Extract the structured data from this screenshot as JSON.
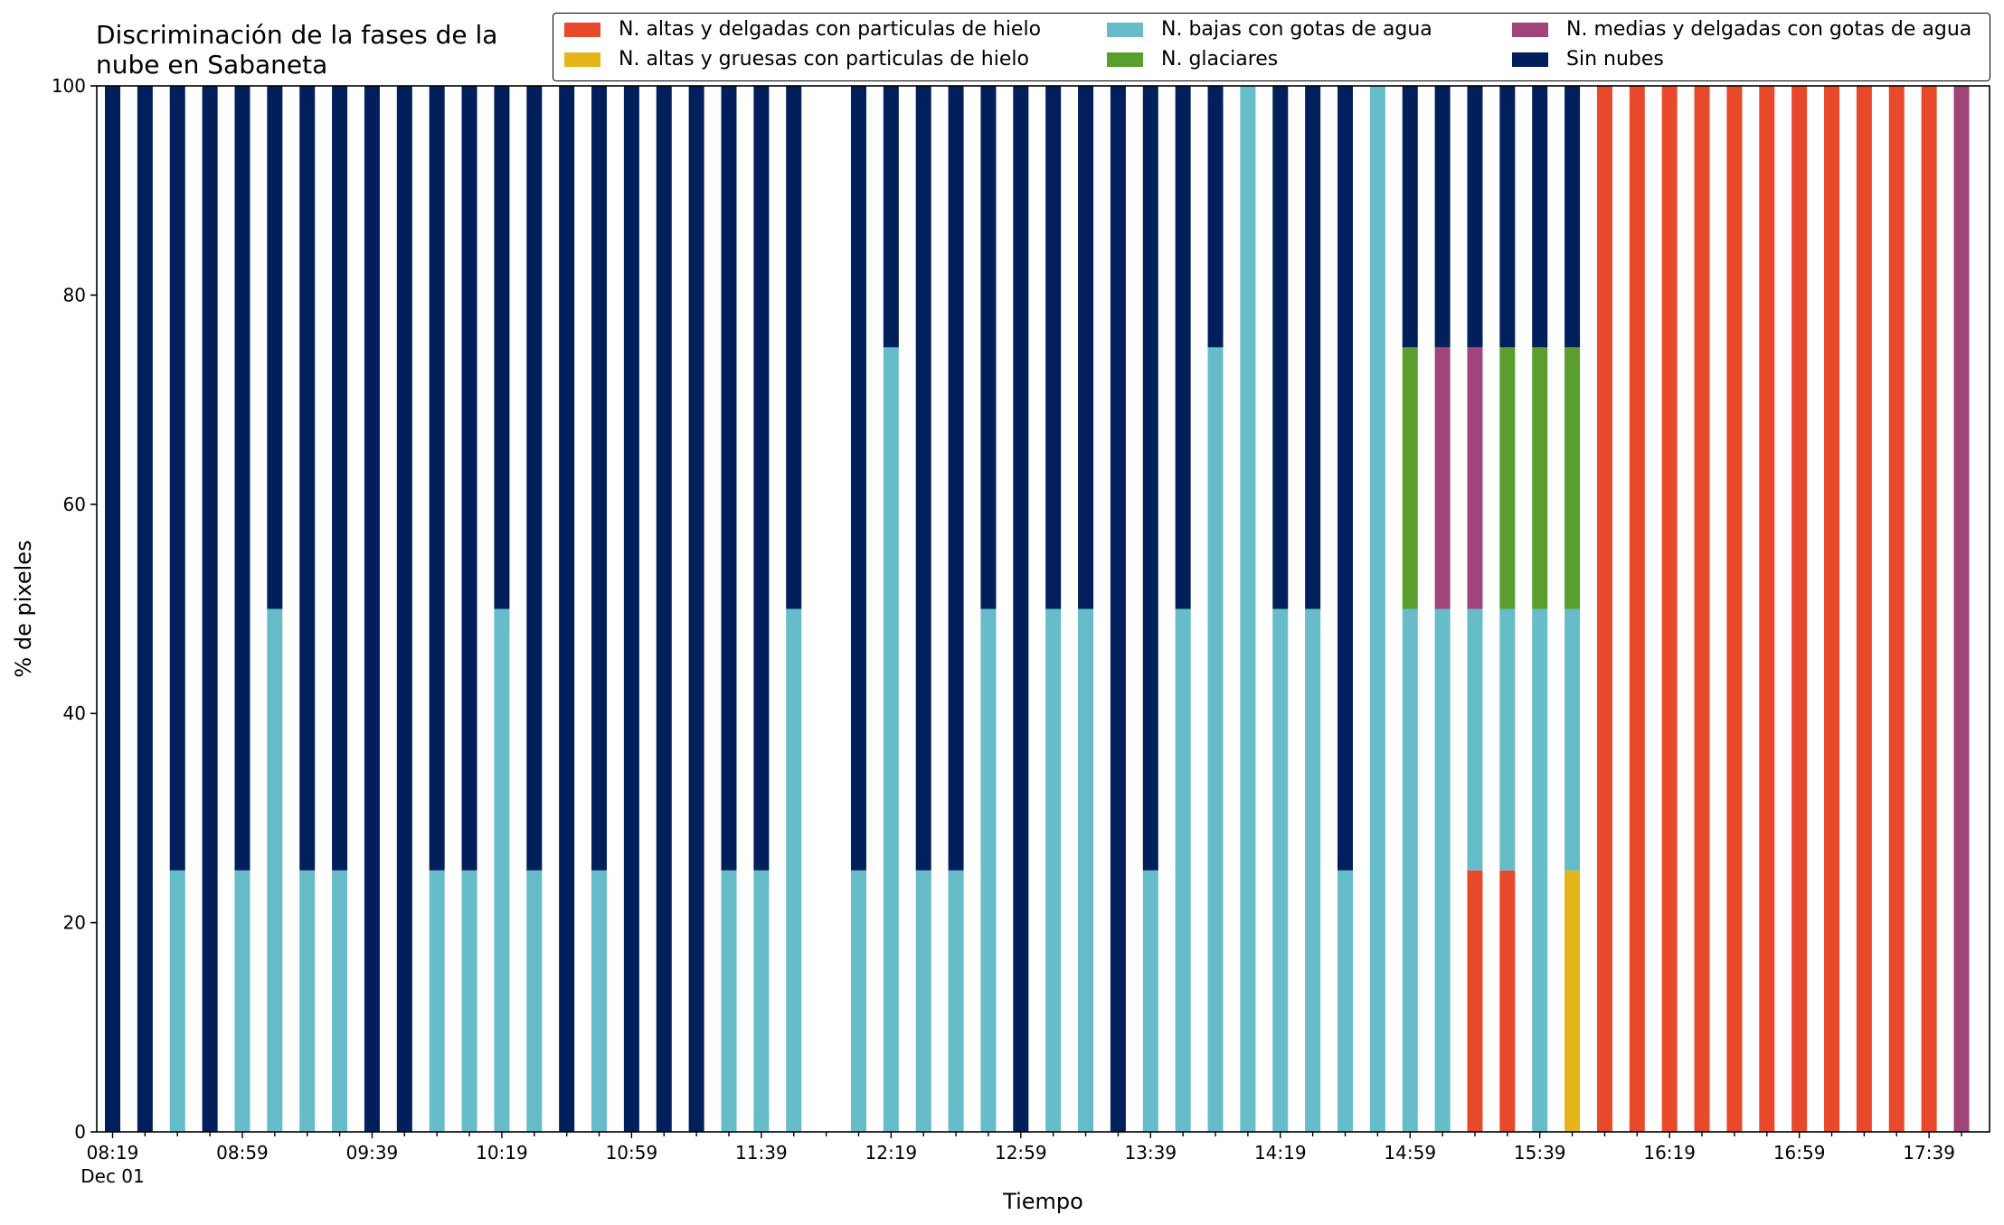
{
  "chart_data": {
    "type": "bar",
    "stacked": true,
    "title_lines": [
      "Discriminación de la fases de la",
      "nube en Sabaneta"
    ],
    "xlabel": "Tiempo",
    "ylabel": "% de pixeles",
    "ylim": [
      0,
      100
    ],
    "yticks": [
      "0",
      "20",
      "40",
      "60",
      "80",
      "100"
    ],
    "xtick_labels": [
      "08:19",
      "08:59",
      "09:39",
      "10:19",
      "10:59",
      "11:39",
      "12:19",
      "12:59",
      "13:39",
      "14:19",
      "14:59",
      "15:39",
      "16:19",
      "16:59",
      "17:39"
    ],
    "xtick_sublabel": "Dec 01",
    "grid": false,
    "legend_placement": "top-right",
    "colors": {
      "altas_delgadas": "#e8492b",
      "altas_gruesas": "#e3b51a",
      "bajas": "#66bcc8",
      "glaciares": "#5a9f2e",
      "medias": "#a0457a",
      "sin_nubes": "#011f5b"
    },
    "series": [
      {
        "key": "altas_delgadas",
        "name": "N. altas y delgadas con particulas de hielo"
      },
      {
        "key": "altas_gruesas",
        "name": "N. altas y gruesas con particulas de hielo"
      },
      {
        "key": "bajas",
        "name": "N. bajas con gotas de agua"
      },
      {
        "key": "glaciares",
        "name": "N. glaciares"
      },
      {
        "key": "medias",
        "name": "N. medias y delgadas con gotas de agua"
      },
      {
        "key": "sin_nubes",
        "name": "Sin nubes"
      }
    ],
    "legend_order": [
      "altas_delgadas",
      "bajas",
      "medias",
      "altas_gruesas",
      "glaciares",
      "sin_nubes"
    ],
    "x": [
      "08:19",
      "08:29",
      "08:39",
      "08:49",
      "08:59",
      "09:09",
      "09:19",
      "09:29",
      "09:39",
      "09:49",
      "09:59",
      "10:09",
      "10:19",
      "10:29",
      "10:39",
      "10:49",
      "10:59",
      "11:09",
      "11:19",
      "11:29",
      "11:39",
      "11:49",
      "11:59",
      "12:09",
      "12:19",
      "12:29",
      "12:39",
      "12:49",
      "12:59",
      "13:09",
      "13:19",
      "13:29",
      "13:39",
      "13:49",
      "13:59",
      "14:09",
      "14:19",
      "14:29",
      "14:39",
      "14:49",
      "14:59",
      "15:09",
      "15:19",
      "15:29",
      "15:39",
      "15:49",
      "15:59",
      "16:09",
      "16:19",
      "16:29",
      "16:39",
      "16:49",
      "16:59",
      "17:09",
      "17:19",
      "17:29",
      "17:39",
      "17:49"
    ],
    "bars": [
      {
        "sin_nubes": 100
      },
      {
        "sin_nubes": 100
      },
      {
        "bajas": 25,
        "sin_nubes": 75
      },
      {
        "sin_nubes": 100
      },
      {
        "bajas": 25,
        "sin_nubes": 75
      },
      {
        "bajas": 50,
        "sin_nubes": 50
      },
      {
        "bajas": 25,
        "sin_nubes": 75
      },
      {
        "bajas": 25,
        "sin_nubes": 75
      },
      {
        "sin_nubes": 100
      },
      {
        "sin_nubes": 100
      },
      {
        "bajas": 25,
        "sin_nubes": 75
      },
      {
        "bajas": 25,
        "sin_nubes": 75
      },
      {
        "bajas": 50,
        "sin_nubes": 50
      },
      {
        "bajas": 25,
        "sin_nubes": 75
      },
      {
        "sin_nubes": 100
      },
      {
        "bajas": 25,
        "sin_nubes": 75
      },
      {
        "sin_nubes": 100
      },
      {
        "sin_nubes": 100
      },
      {
        "sin_nubes": 100
      },
      {
        "bajas": 25,
        "sin_nubes": 75
      },
      {
        "bajas": 25,
        "sin_nubes": 75
      },
      {
        "bajas": 50,
        "sin_nubes": 50
      },
      {},
      {
        "bajas": 25,
        "sin_nubes": 75
      },
      {
        "bajas": 75,
        "sin_nubes": 25
      },
      {
        "bajas": 25,
        "sin_nubes": 75
      },
      {
        "bajas": 25,
        "sin_nubes": 75
      },
      {
        "bajas": 50,
        "sin_nubes": 50
      },
      {
        "sin_nubes": 100
      },
      {
        "bajas": 50,
        "sin_nubes": 50
      },
      {
        "bajas": 50,
        "sin_nubes": 50
      },
      {
        "sin_nubes": 100
      },
      {
        "bajas": 25,
        "sin_nubes": 75
      },
      {
        "bajas": 50,
        "sin_nubes": 50
      },
      {
        "bajas": 75,
        "sin_nubes": 25
      },
      {
        "bajas": 100
      },
      {
        "bajas": 50,
        "sin_nubes": 50
      },
      {
        "bajas": 50,
        "sin_nubes": 50
      },
      {
        "bajas": 25,
        "sin_nubes": 75
      },
      {
        "bajas": 100
      },
      {
        "bajas": 50,
        "glaciares": 25,
        "sin_nubes": 25
      },
      {
        "bajas": 50,
        "medias": 25,
        "sin_nubes": 25
      },
      {
        "altas_delgadas": 25,
        "bajas": 25,
        "medias": 25,
        "sin_nubes": 25
      },
      {
        "altas_delgadas": 25,
        "bajas": 25,
        "glaciares": 25,
        "sin_nubes": 25
      },
      {
        "bajas": 50,
        "glaciares": 25,
        "sin_nubes": 25
      },
      {
        "altas_gruesas": 25,
        "bajas": 25,
        "glaciares": 25,
        "sin_nubes": 25
      },
      {
        "altas_delgadas": 100
      },
      {
        "altas_delgadas": 100
      },
      {
        "altas_delgadas": 100
      },
      {
        "altas_delgadas": 100
      },
      {
        "altas_delgadas": 100
      },
      {
        "altas_delgadas": 100
      },
      {
        "altas_delgadas": 100
      },
      {
        "altas_delgadas": 100
      },
      {
        "altas_delgadas": 100
      },
      {
        "altas_delgadas": 100
      },
      {
        "altas_delgadas": 100
      },
      {
        "medias": 100
      }
    ],
    "stack_order": [
      "altas_delgadas",
      "altas_gruesas",
      "bajas",
      "glaciares",
      "medias",
      "sin_nubes"
    ]
  }
}
